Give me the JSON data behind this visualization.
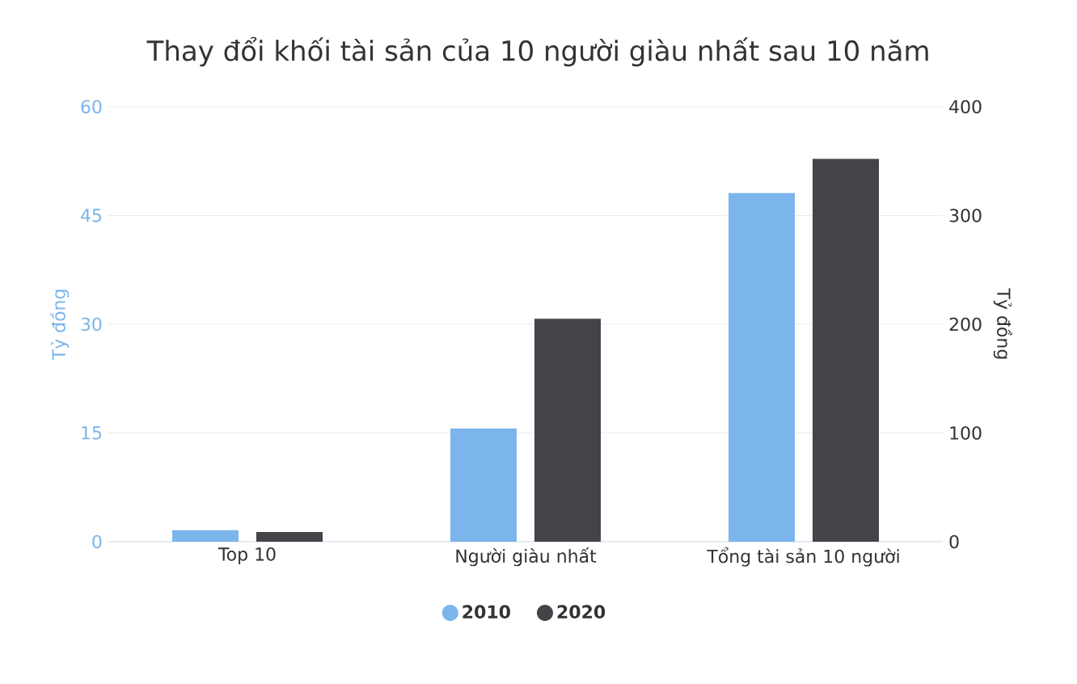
{
  "chart_data": {
    "type": "bar",
    "title": "Thay đổi khối tài sản của 10 người giàu nhất sau 10 năm",
    "categories": [
      "Top 10",
      "Người giàu nhất",
      "Tổng tài sản 10 người"
    ],
    "series": [
      {
        "name": "2010",
        "color": "#7cb5ec",
        "values": [
          1.6,
          15.6,
          48.1
        ]
      },
      {
        "name": "2020",
        "color": "#434348",
        "values": [
          9,
          205,
          352
        ],
        "axis": "y2"
      }
    ],
    "ylabel": "Tỷ đồng",
    "y2label": "Tỷ đồng",
    "ylim": [
      0,
      60
    ],
    "yticks": [
      0,
      15,
      30,
      45,
      60
    ],
    "y2lim": [
      0,
      400
    ],
    "y2ticks": [
      0,
      100,
      200,
      300,
      400
    ],
    "grid": "y",
    "legend": "bottom"
  }
}
